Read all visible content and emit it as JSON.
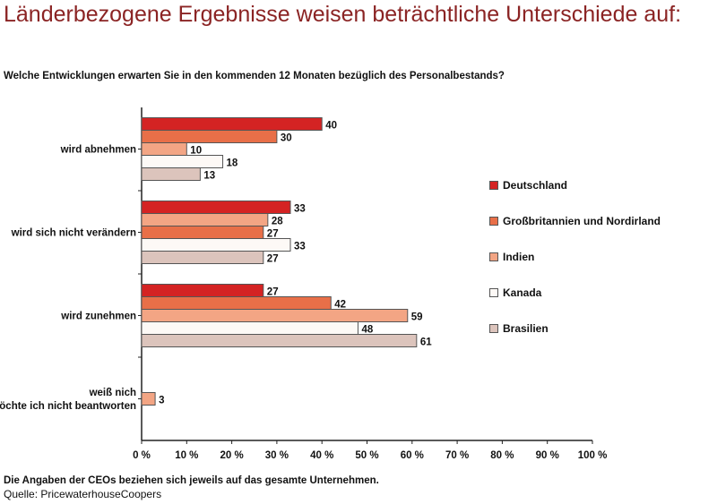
{
  "title": "Länderbezogene Ergebnisse weisen beträchtliche Unterschiede auf:",
  "question": "Welche Entwicklungen erwarten Sie in den kommenden 12 Monaten bezüglich des Personalbestands?",
  "footnote": "Die Angaben der CEOs beziehen sich jeweils auf das gesamte Unternehmen.",
  "source": "Quelle: PricewaterhouseCoopers",
  "chart_data": {
    "type": "bar",
    "orientation": "horizontal",
    "categories": [
      "wird abnehmen",
      "wird sich nicht verändern",
      "wird zunehmen",
      "weiß nicht/möchte ich nicht beantworten"
    ],
    "series": [
      {
        "name": "Deutschland",
        "color": "#d42323",
        "values": [
          40,
          33,
          27,
          null
        ]
      },
      {
        "name": "Großbritannien und Nordirland",
        "color": "#e86f48",
        "values": [
          30,
          27,
          42,
          null
        ]
      },
      {
        "name": "Indien",
        "color": "#f3a584",
        "values": [
          10,
          28,
          59,
          3
        ]
      },
      {
        "name": "Kanada",
        "color": "#fdf9f6",
        "values": [
          18,
          33,
          48,
          null
        ]
      },
      {
        "name": "Brasilien",
        "color": "#dcc4bc",
        "values": [
          13,
          27,
          61,
          null
        ]
      }
    ],
    "xlim": [
      0,
      100
    ],
    "xticks": [
      "0 %",
      "10 %",
      "20 %",
      "30 %",
      "40 %",
      "50 %",
      "60 %",
      "70 %",
      "80 %",
      "90 %",
      "100 %"
    ],
    "grid": false,
    "legend_position": "right"
  }
}
